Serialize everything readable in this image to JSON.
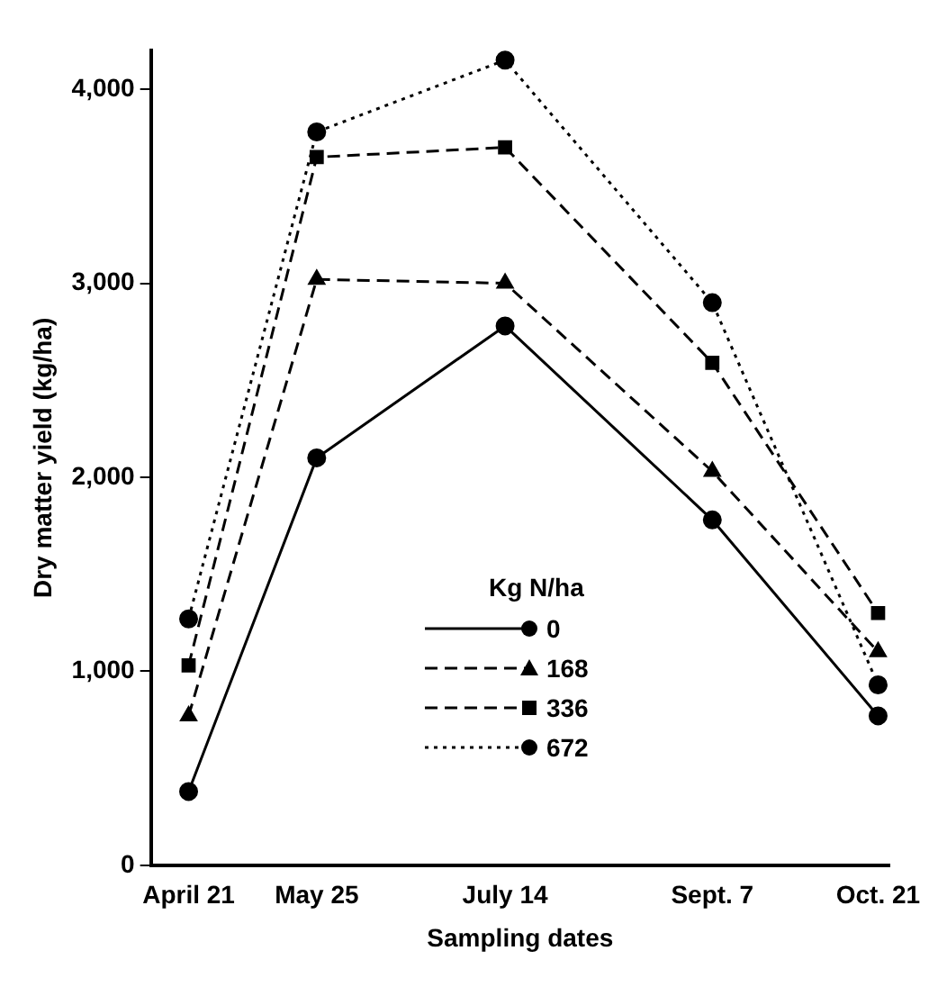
{
  "chart_data": {
    "type": "line",
    "xlabel": "Sampling dates",
    "ylabel": "Dry matter yield (kg/ha)",
    "legend_title": "Kg N/ha",
    "legend": "bottom right",
    "grid": false,
    "x": [
      "--04-21",
      "--05-25",
      "--07-14",
      "--09-07",
      "--10-21"
    ],
    "xlim": [
      "--04-11",
      "--10-24"
    ],
    "xticks": [
      {
        "value": "--04-21",
        "label": "April 21"
      },
      {
        "value": "--05-25",
        "label": "May 25"
      },
      {
        "value": "--07-14",
        "label": "July 14"
      },
      {
        "value": "--09-07",
        "label": "Sept. 7"
      },
      {
        "value": "--10-21",
        "label": "Oct. 21"
      }
    ],
    "ylim": [
      0,
      4200
    ],
    "yticks": [
      0,
      {
        "value": 1000,
        "label": "1,000"
      },
      {
        "value": 2000,
        "label": "2,000"
      },
      {
        "value": 3000,
        "label": "3,000"
      },
      {
        "value": 4000,
        "label": "4,000"
      }
    ],
    "series": [
      {
        "name": "0",
        "color": "#000000",
        "marker": "circle",
        "line_style": "solid",
        "values": [
          380,
          2100,
          2780,
          1780,
          770
        ]
      },
      {
        "name": "168",
        "color": "#000000",
        "marker": "triangle",
        "line_style": "dashed",
        "values": [
          770,
          3020,
          3000,
          2030,
          1100
        ]
      },
      {
        "name": "336",
        "color": "#000000",
        "marker": "square",
        "line_style": "dashed",
        "values": [
          1030,
          3650,
          3700,
          2590,
          1300
        ]
      },
      {
        "name": "672",
        "color": "#000000",
        "marker": "circle",
        "line_style": "dotted",
        "values": [
          1270,
          3780,
          4150,
          2900,
          930
        ]
      }
    ]
  }
}
